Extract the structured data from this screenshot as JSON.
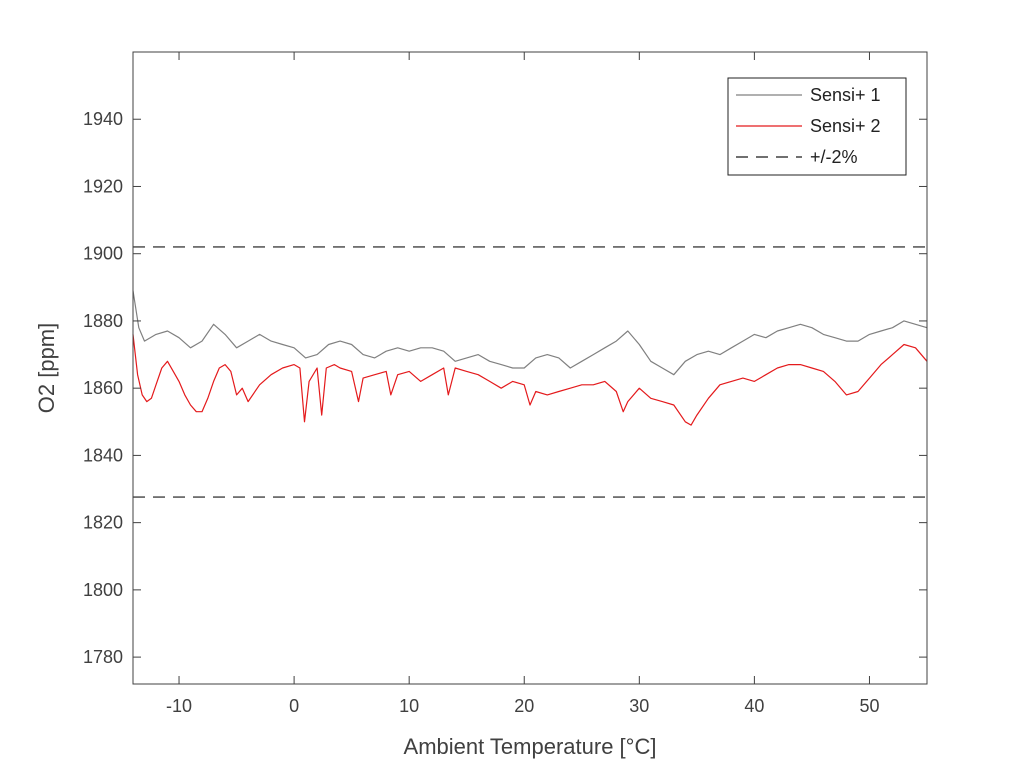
{
  "chart_data": {
    "type": "line",
    "title": "",
    "xlabel": "Ambient Temperature [°C]",
    "ylabel": "O2 [ppm]",
    "xlim": [
      -14,
      55
    ],
    "ylim": [
      1772,
      1960
    ],
    "xticks": [
      -10,
      0,
      10,
      20,
      30,
      40,
      50
    ],
    "yticks": [
      1780,
      1800,
      1820,
      1840,
      1860,
      1880,
      1900,
      1920,
      1940
    ],
    "grid": false,
    "legend_position": "top-right",
    "colors": {
      "series1": "#808080",
      "series2": "#e41a1c",
      "bounds": "#404040",
      "axis": "#404040"
    },
    "series": [
      {
        "name": "Sensi+ 1",
        "style": "solid",
        "x": [
          -14,
          -13.5,
          -13,
          -12,
          -11,
          -10,
          -9,
          -8,
          -7,
          -6,
          -5,
          -4,
          -3,
          -2,
          -1,
          0,
          1,
          2,
          3,
          4,
          5,
          6,
          7,
          8,
          9,
          10,
          11,
          12,
          13,
          14,
          15,
          16,
          17,
          18,
          19,
          20,
          21,
          22,
          23,
          24,
          25,
          26,
          27,
          28,
          29,
          30,
          31,
          32,
          33,
          34,
          35,
          36,
          37,
          38,
          39,
          40,
          41,
          42,
          43,
          44,
          45,
          46,
          47,
          48,
          49,
          50,
          51,
          52,
          53,
          54,
          55
        ],
        "y": [
          1889,
          1878,
          1874,
          1876,
          1877,
          1875,
          1872,
          1874,
          1879,
          1876,
          1872,
          1874,
          1876,
          1874,
          1873,
          1872,
          1869,
          1870,
          1873,
          1874,
          1873,
          1870,
          1869,
          1871,
          1872,
          1871,
          1872,
          1872,
          1871,
          1868,
          1869,
          1870,
          1868,
          1867,
          1866,
          1866,
          1869,
          1870,
          1869,
          1866,
          1868,
          1870,
          1872,
          1874,
          1877,
          1873,
          1868,
          1866,
          1864,
          1868,
          1870,
          1871,
          1870,
          1872,
          1874,
          1876,
          1875,
          1877,
          1878,
          1879,
          1878,
          1876,
          1875,
          1874,
          1874,
          1876,
          1877,
          1878,
          1880,
          1879,
          1878
        ]
      },
      {
        "name": "Sensi+ 2",
        "style": "solid",
        "x": [
          -14,
          -13.6,
          -13.2,
          -12.8,
          -12.4,
          -12,
          -11.5,
          -11,
          -10.5,
          -10,
          -9.5,
          -9,
          -8.5,
          -8,
          -7.5,
          -7,
          -6.5,
          -6,
          -5.5,
          -5,
          -4.5,
          -4,
          -3,
          -2,
          -1,
          0,
          0.5,
          0.9,
          1.3,
          2,
          2.4,
          2.8,
          3.5,
          4,
          5,
          5.6,
          6,
          7,
          8,
          8.4,
          9,
          10,
          11,
          12,
          13,
          13.4,
          14,
          15,
          16,
          17,
          18,
          19,
          20,
          20.5,
          21,
          22,
          23,
          24,
          25,
          26,
          27,
          28,
          28.6,
          29,
          30,
          31,
          32,
          33,
          34,
          34.5,
          35,
          36,
          37,
          38,
          39,
          40,
          41,
          42,
          43,
          44,
          45,
          46,
          47,
          48,
          49,
          50,
          51,
          52,
          53,
          54,
          55
        ],
        "y": [
          1876,
          1864,
          1858,
          1856,
          1857,
          1861,
          1866,
          1868,
          1865,
          1862,
          1858,
          1855,
          1853,
          1853,
          1857,
          1862,
          1866,
          1867,
          1865,
          1858,
          1860,
          1856,
          1861,
          1864,
          1866,
          1867,
          1866,
          1850,
          1862,
          1866,
          1852,
          1866,
          1867,
          1866,
          1865,
          1856,
          1863,
          1864,
          1865,
          1858,
          1864,
          1865,
          1862,
          1864,
          1866,
          1858,
          1866,
          1865,
          1864,
          1862,
          1860,
          1862,
          1861,
          1855,
          1859,
          1858,
          1859,
          1860,
          1861,
          1861,
          1862,
          1859,
          1853,
          1856,
          1860,
          1857,
          1856,
          1855,
          1850,
          1849,
          1852,
          1857,
          1861,
          1862,
          1863,
          1862,
          1864,
          1866,
          1867,
          1867,
          1866,
          1865,
          1862,
          1858,
          1859,
          1863,
          1867,
          1870,
          1873,
          1872,
          1868
        ]
      },
      {
        "name": "+/-2%",
        "style": "dashed",
        "upper": 1902,
        "lower": 1827.6
      }
    ]
  }
}
